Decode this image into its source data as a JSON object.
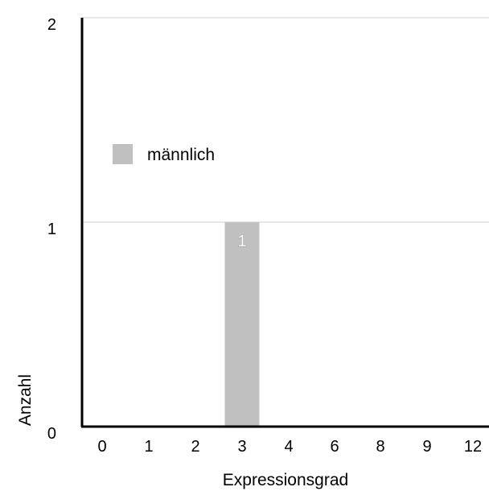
{
  "chart_data": {
    "type": "bar",
    "title": "",
    "xlabel": "Expressionsgrad",
    "ylabel": "Anzahl",
    "categories": [
      "0",
      "1",
      "2",
      "3",
      "4",
      "6",
      "8",
      "9",
      "12"
    ],
    "series": [
      {
        "name": "männlich",
        "values": [
          0,
          0,
          0,
          1,
          0,
          0,
          0,
          0,
          0
        ],
        "color": "#c0c0c0"
      }
    ],
    "data_labels": [
      {
        "category": "3",
        "value": 1,
        "text": "1"
      }
    ],
    "yticks": [
      "0",
      "1",
      "2"
    ],
    "ylim": [
      0,
      2
    ],
    "grid": true,
    "legend_position": "left"
  }
}
